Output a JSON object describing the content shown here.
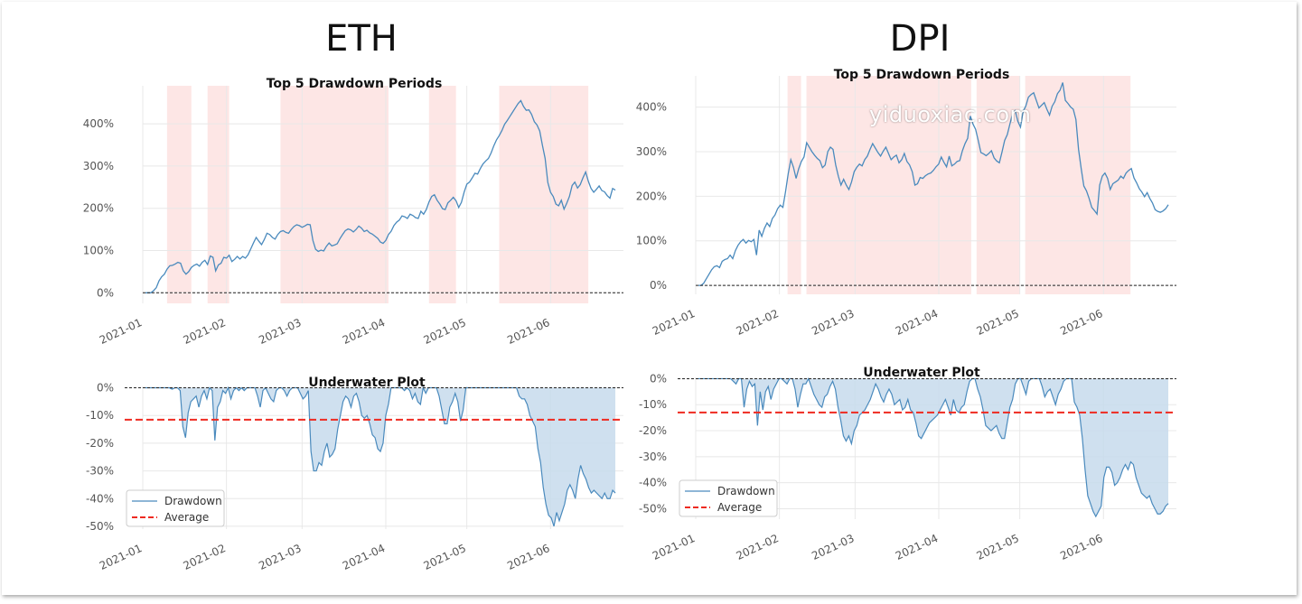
{
  "titles": {
    "eth": "ETH",
    "dpi": "DPI"
  },
  "watermark": "yiduoxiac.com",
  "colors": {
    "line": "#4a8abd",
    "shade": "#fde6e5",
    "uw_fill": "#c7dbec",
    "avg": "#ee2a20",
    "zero": "#222222"
  },
  "chart_data": [
    {
      "id": "eth_top",
      "type": "line",
      "title": "Top 5 Drawdown Periods",
      "x_ticks": [
        "2021-01",
        "2021-02",
        "2021-03",
        "2021-04",
        "2021-05",
        "2021-06"
      ],
      "y_ticks": [
        "0%",
        "100%",
        "200%",
        "300%",
        "400%"
      ],
      "ylim": [
        -25,
        490
      ],
      "xlim": [
        0,
        178
      ],
      "tick_days": [
        0,
        31,
        59,
        90,
        120,
        151
      ],
      "shaded_periods": [
        [
          9,
          18
        ],
        [
          24,
          32
        ],
        [
          51,
          91
        ],
        [
          106,
          116
        ],
        [
          132,
          165
        ]
      ],
      "line_color": "#4a8abd",
      "values": [
        0,
        0,
        0,
        5,
        12,
        28,
        38,
        44,
        56,
        64,
        65,
        68,
        72,
        70,
        52,
        44,
        50,
        60,
        65,
        68,
        63,
        72,
        77,
        67,
        87,
        84,
        52,
        66,
        70,
        84,
        82,
        89,
        74,
        79,
        86,
        80,
        86,
        82,
        90,
        104,
        118,
        131,
        122,
        114,
        126,
        141,
        138,
        131,
        127,
        138,
        145,
        147,
        143,
        141,
        150,
        157,
        161,
        159,
        155,
        158,
        162,
        161,
        124,
        103,
        98,
        101,
        99,
        110,
        118,
        111,
        113,
        116,
        128,
        138,
        147,
        151,
        149,
        144,
        150,
        158,
        153,
        145,
        148,
        142,
        139,
        134,
        129,
        120,
        117,
        124,
        138,
        146,
        159,
        167,
        172,
        182,
        180,
        176,
        186,
        183,
        178,
        176,
        193,
        186,
        197,
        215,
        228,
        232,
        219,
        210,
        199,
        197,
        213,
        219,
        226,
        218,
        202,
        214,
        238,
        257,
        262,
        272,
        283,
        281,
        294,
        305,
        312,
        318,
        331,
        348,
        362,
        372,
        384,
        399,
        408,
        418,
        428,
        438,
        448,
        455,
        441,
        432,
        433,
        422,
        405,
        397,
        383,
        349,
        318,
        261,
        238,
        228,
        210,
        206,
        219,
        198,
        212,
        228,
        254,
        262,
        248,
        256,
        272,
        286,
        264,
        247,
        238,
        245,
        253,
        242,
        239,
        230,
        224,
        247,
        243
      ],
      "points": 179
    },
    {
      "id": "eth_uw",
      "type": "area",
      "title": "Underwater Plot",
      "x_ticks": [
        "2021-01",
        "2021-02",
        "2021-03",
        "2021-04",
        "2021-05",
        "2021-06"
      ],
      "y_ticks": [
        "0%",
        "-10%",
        "-20%",
        "-30%",
        "-40%",
        "-50%"
      ],
      "ylim": [
        -51,
        0.5
      ],
      "xlim": [
        0,
        178
      ],
      "tick_days": [
        0,
        31,
        59,
        90,
        120,
        151
      ],
      "average": -11.5,
      "legend": [
        "Drawdown",
        "Average"
      ],
      "legend_position": "lower-left",
      "values": [
        0,
        0,
        0,
        0,
        0,
        0,
        0,
        0,
        0,
        0,
        -0.5,
        0,
        0,
        -1,
        -14,
        -18,
        -9,
        -5,
        -4,
        -3,
        -7,
        -3,
        -1,
        -4,
        0,
        -1,
        -19,
        -7,
        -5,
        -1,
        -2,
        0,
        -4,
        -1,
        0,
        -1,
        0,
        -1,
        0,
        0,
        0,
        0,
        -3,
        -7,
        -1,
        0,
        -2,
        -4,
        -5,
        -1,
        0,
        0,
        -1,
        -3,
        -1,
        0,
        0,
        0,
        -2,
        -4,
        -3,
        -1,
        -23,
        -30,
        -30,
        -27,
        -28,
        -23,
        -20,
        -25,
        -24,
        -22,
        -15,
        -10,
        -5,
        -3,
        -4,
        -7,
        -3,
        -2,
        -5,
        -10,
        -11,
        -10,
        -13,
        -17,
        -18,
        -22,
        -23,
        -20,
        -10,
        -6,
        0,
        0,
        0,
        0,
        0,
        -1,
        0,
        -1,
        -4,
        -2,
        -5,
        -6,
        0,
        -2,
        0,
        0,
        0,
        0,
        -3,
        -8,
        -13,
        -13,
        -7,
        -5,
        -2,
        -5,
        -12,
        -8,
        0,
        0,
        0,
        0,
        0,
        0,
        0,
        0,
        0,
        0,
        0,
        0,
        0,
        0,
        0,
        0,
        0,
        0,
        0,
        0,
        -3,
        -4,
        -4,
        -6,
        -10,
        -12,
        -14,
        -22,
        -27,
        -36,
        -42,
        -46,
        -47,
        -50,
        -45,
        -48,
        -45,
        -42,
        -37,
        -35,
        -37,
        -40,
        -33,
        -28,
        -31,
        -33,
        -36,
        -38,
        -37,
        -38,
        -39,
        -40,
        -38,
        -40,
        -40,
        -37,
        -38
      ],
      "points": 179
    },
    {
      "id": "dpi_top",
      "type": "line",
      "title": "Top 5 Drawdown Periods",
      "x_ticks": [
        "2021-01",
        "2021-02",
        "2021-03",
        "2021-04",
        "2021-05",
        "2021-06"
      ],
      "y_ticks": [
        "0%",
        "100%",
        "200%",
        "300%",
        "400%"
      ],
      "ylim": [
        -20,
        470
      ],
      "xlim": [
        0,
        178
      ],
      "tick_days": [
        0,
        31,
        59,
        90,
        120,
        151
      ],
      "shaded_periods": [
        [
          34,
          39
        ],
        [
          41,
          102
        ],
        [
          104,
          120
        ],
        [
          122,
          132
        ],
        [
          132,
          161
        ]
      ],
      "line_color": "#4a8abd",
      "values": [
        0,
        0,
        5,
        15,
        25,
        35,
        42,
        44,
        40,
        54,
        58,
        60,
        68,
        60,
        78,
        90,
        98,
        103,
        95,
        101,
        98,
        103,
        68,
        124,
        110,
        128,
        140,
        132,
        150,
        158,
        172,
        180,
        175,
        210,
        250,
        282,
        265,
        240,
        262,
        278,
        288,
        320,
        310,
        300,
        292,
        285,
        280,
        264,
        270,
        300,
        310,
        305,
        270,
        245,
        225,
        238,
        225,
        215,
        232,
        255,
        265,
        272,
        268,
        282,
        290,
        305,
        318,
        308,
        298,
        290,
        301,
        310,
        296,
        282,
        288,
        292,
        275,
        282,
        296,
        278,
        270,
        255,
        225,
        228,
        242,
        240,
        246,
        250,
        252,
        258,
        266,
        272,
        288,
        276,
        266,
        290,
        268,
        272,
        278,
        280,
        302,
        318,
        330,
        380,
        362,
        350,
        325,
        298,
        295,
        291,
        296,
        302,
        286,
        279,
        275,
        299,
        325,
        338,
        362,
        385,
        392,
        368,
        355,
        390,
        402,
        422,
        428,
        432,
        415,
        398,
        404,
        410,
        395,
        382,
        402,
        412,
        430,
        438,
        455,
        415,
        408,
        400,
        395,
        372,
        305,
        262,
        223,
        212,
        195,
        175,
        168,
        160,
        225,
        245,
        252,
        240,
        215,
        228,
        232,
        236,
        245,
        240,
        252,
        258,
        262,
        241,
        230,
        217,
        209,
        199,
        208,
        195,
        185,
        170,
        166,
        164,
        167,
        172,
        181
      ],
      "points": 179
    },
    {
      "id": "dpi_uw",
      "type": "area",
      "title": "Underwater Plot",
      "x_ticks": [
        "2021-01",
        "2021-02",
        "2021-03",
        "2021-04",
        "2021-05",
        "2021-06"
      ],
      "y_ticks": [
        "0%",
        "-10%",
        "-20%",
        "-30%",
        "-40%",
        "-50%"
      ],
      "ylim": [
        -54,
        0.5
      ],
      "xlim": [
        0,
        178
      ],
      "tick_days": [
        0,
        31,
        59,
        90,
        120,
        151
      ],
      "average": -13,
      "legend": [
        "Drawdown",
        "Average"
      ],
      "legend_position": "lower-left",
      "values": [
        0,
        0,
        0,
        0,
        0,
        0,
        0,
        0,
        0,
        0,
        0,
        0,
        0,
        -1,
        -2,
        0,
        0,
        -11,
        -4,
        -1,
        -3,
        -2,
        -18,
        -5,
        -12,
        -5,
        -3,
        -8,
        -4,
        -2,
        0,
        0,
        -1,
        -2,
        0,
        0,
        -4,
        -11,
        -6,
        -2,
        -2,
        0,
        -3,
        -6,
        -8,
        -10,
        -11,
        -7,
        -6,
        -3,
        -1,
        -4,
        -11,
        -16,
        -22,
        -24,
        -22,
        -25,
        -20,
        -18,
        -14,
        -13,
        -12,
        -10,
        -8,
        -5,
        -2,
        -4,
        -7,
        -9,
        -6,
        -4,
        -6,
        -10,
        -9,
        -8,
        -12,
        -11,
        -8,
        -12,
        -13,
        -17,
        -22,
        -23,
        -21,
        -19,
        -17,
        -16,
        -15,
        -14,
        -12,
        -10,
        -8,
        -11,
        -14,
        -8,
        -12,
        -13,
        -11,
        -10,
        -5,
        -1,
        0,
        0,
        -4,
        -7,
        -12,
        -18,
        -19,
        -20,
        -19,
        -18,
        -21,
        -23,
        -23,
        -17,
        -11,
        -8,
        -2,
        0,
        0,
        -3,
        -6,
        -1,
        0,
        0,
        0,
        0,
        -3,
        -7,
        -5,
        -4,
        -7,
        -10,
        -6,
        -4,
        -1,
        0,
        0,
        0,
        -9,
        -11,
        -14,
        -23,
        -35,
        -45,
        -48,
        -51,
        -53,
        -51,
        -49,
        -38,
        -34,
        -34,
        -36,
        -41,
        -40,
        -38,
        -35,
        -33,
        -35,
        -32,
        -33,
        -38,
        -41,
        -44,
        -45,
        -46,
        -45,
        -48,
        -50,
        -52,
        -52,
        -51,
        -49,
        -48
      ],
      "points": 179
    }
  ]
}
